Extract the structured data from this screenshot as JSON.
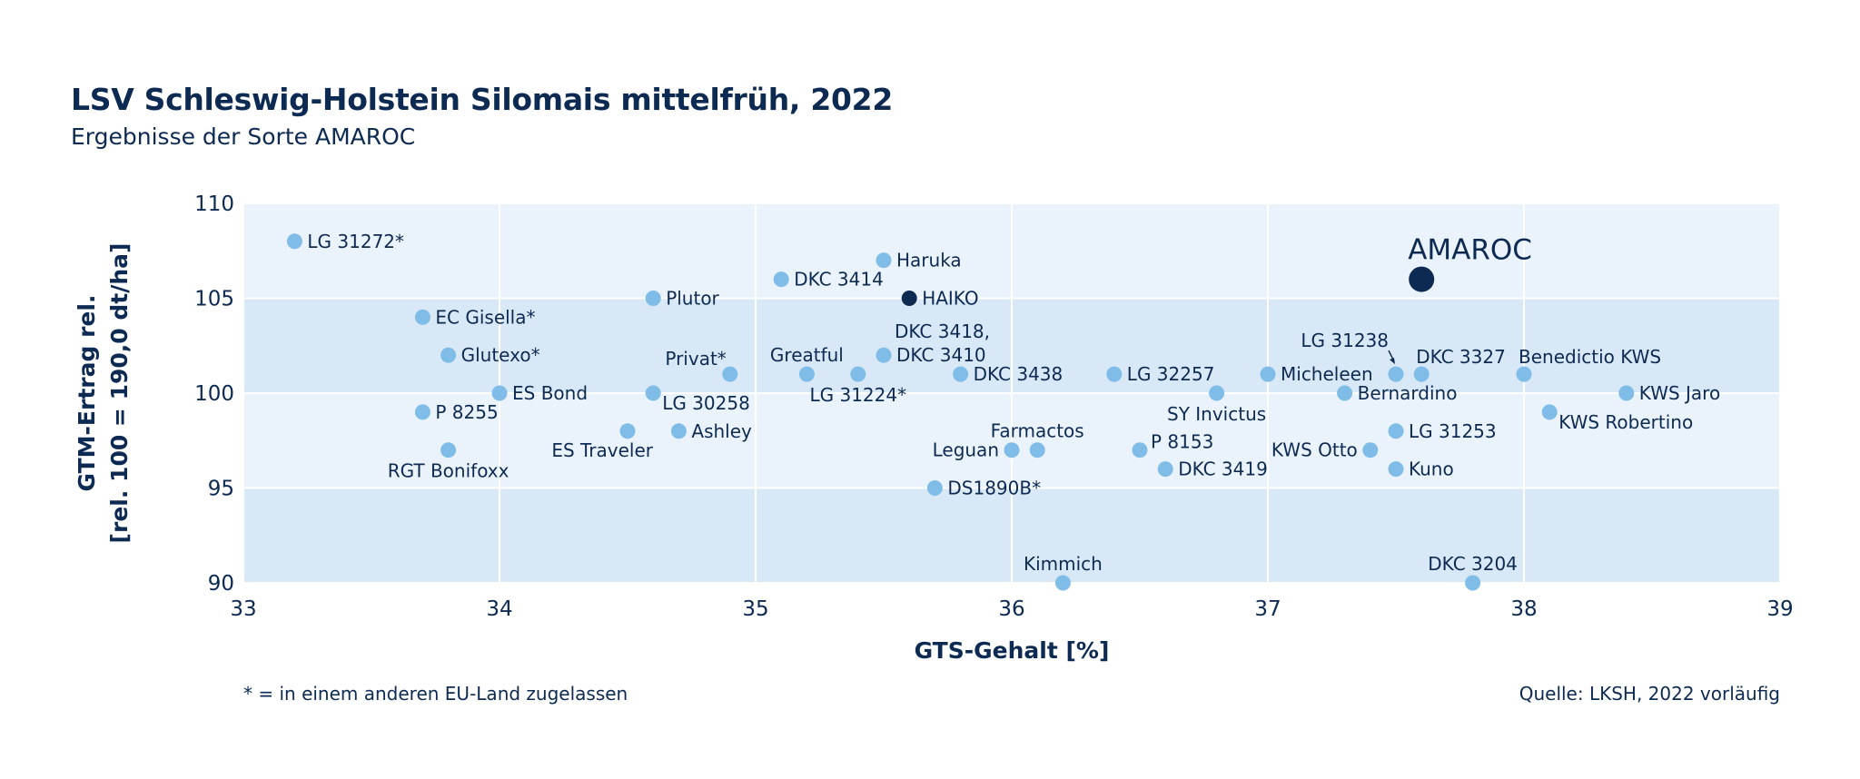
{
  "header": {
    "title": "LSV Schleswig-Holstein Silomais mittelfrüh, 2022",
    "subtitle": "Ergebnisse der Sorte AMAROC"
  },
  "footer": {
    "footnote": "* = in einem anderen EU-Land zugelassen",
    "source": "Quelle: LKSH, 2022 vorläufig"
  },
  "colors": {
    "point": "#7fbde8",
    "highlight": "#0d2a52",
    "band_light": "#eaf3fb",
    "band_dark": "#d8e8f6",
    "text": "#0d2a52"
  },
  "chart_data": {
    "type": "scatter",
    "xlabel": "GTS-Gehalt [%]",
    "ylabel_lines": [
      "GTM-Ertrag rel.",
      "[rel. 100 = 190,0 dt/ha]"
    ],
    "xlim": [
      33,
      39
    ],
    "ylim": [
      90,
      110
    ],
    "xticks": [
      33,
      34,
      35,
      36,
      37,
      38,
      39
    ],
    "yticks": [
      90,
      95,
      100,
      105,
      110
    ],
    "grid": true,
    "points": [
      {
        "label": "LG 31272*",
        "x": 33.2,
        "y": 108,
        "pos": "right"
      },
      {
        "label": "EC Gisella*",
        "x": 33.7,
        "y": 104,
        "pos": "right"
      },
      {
        "label": "Glutexo*",
        "x": 33.8,
        "y": 102,
        "pos": "right"
      },
      {
        "label": "ES Bond",
        "x": 34.0,
        "y": 100,
        "pos": "right"
      },
      {
        "label": "P 8255",
        "x": 33.7,
        "y": 99,
        "pos": "right"
      },
      {
        "label": "RGT Bonifoxx",
        "x": 33.8,
        "y": 97,
        "pos": "below"
      },
      {
        "label": "Plutor",
        "x": 34.6,
        "y": 105,
        "pos": "right"
      },
      {
        "label": "LG 30258",
        "x": 34.6,
        "y": 100,
        "pos": "right-low"
      },
      {
        "label": "ES Traveler",
        "x": 34.5,
        "y": 98,
        "pos": "below-left"
      },
      {
        "label": "Ashley",
        "x": 34.7,
        "y": 98,
        "pos": "right"
      },
      {
        "label": "Privat*",
        "x": 34.9,
        "y": 101,
        "pos": "above-left"
      },
      {
        "label": "DKC 3414",
        "x": 35.1,
        "y": 106,
        "pos": "right"
      },
      {
        "label": "Greatful",
        "x": 35.2,
        "y": 101,
        "pos": "above"
      },
      {
        "label": "LG 31224*",
        "x": 35.4,
        "y": 101,
        "pos": "below"
      },
      {
        "label": "Haruka",
        "x": 35.5,
        "y": 107,
        "pos": "right"
      },
      {
        "label": "DKC 3418,",
        "x": 35.5,
        "y": 102,
        "pos": "right-up2"
      },
      {
        "label": "DKC 3410",
        "x": 35.5,
        "y": 102,
        "pos": "right"
      },
      {
        "label": "HAIKO",
        "x": 35.6,
        "y": 105,
        "pos": "right",
        "highlight": true
      },
      {
        "label": "DKC 3438",
        "x": 35.8,
        "y": 101,
        "pos": "right"
      },
      {
        "label": "DS1890B*",
        "x": 35.7,
        "y": 95,
        "pos": "right"
      },
      {
        "label": "Leguan",
        "x": 36.0,
        "y": 97,
        "pos": "left"
      },
      {
        "label": "Farmactos",
        "x": 36.1,
        "y": 97,
        "pos": "above"
      },
      {
        "label": "Kimmich",
        "x": 36.2,
        "y": 90,
        "pos": "above"
      },
      {
        "label": "LG 32257",
        "x": 36.4,
        "y": 101,
        "pos": "right"
      },
      {
        "label": "P 8153",
        "x": 36.5,
        "y": 97,
        "pos": "right-up"
      },
      {
        "label": "DKC 3419",
        "x": 36.6,
        "y": 96,
        "pos": "right"
      },
      {
        "label": "SY Invictus",
        "x": 36.8,
        "y": 100,
        "pos": "below"
      },
      {
        "label": "Micheleen",
        "x": 37.0,
        "y": 101,
        "pos": "right"
      },
      {
        "label": "Bernardino",
        "x": 37.3,
        "y": 100,
        "pos": "right"
      },
      {
        "label": "KWS Otto",
        "x": 37.4,
        "y": 97,
        "pos": "left"
      },
      {
        "label": "LG 31238",
        "x": 37.5,
        "y": 101,
        "pos": "above-left-arrow"
      },
      {
        "label": "LG 31253",
        "x": 37.5,
        "y": 98,
        "pos": "right"
      },
      {
        "label": "Kuno",
        "x": 37.5,
        "y": 96,
        "pos": "right"
      },
      {
        "label": "DKC 3327",
        "x": 37.6,
        "y": 101,
        "pos": "above-right"
      },
      {
        "label": "AMAROC",
        "x": 37.6,
        "y": 106,
        "pos": "above-big",
        "highlight": true,
        "big": true
      },
      {
        "label": "DKC 3204",
        "x": 37.8,
        "y": 90,
        "pos": "above"
      },
      {
        "label": "Benedictio KWS",
        "x": 38.0,
        "y": 101,
        "pos": "above-right"
      },
      {
        "label": "KWS Robertino",
        "x": 38.1,
        "y": 99,
        "pos": "right-low"
      },
      {
        "label": "KWS Jaro",
        "x": 38.4,
        "y": 100,
        "pos": "right"
      }
    ]
  }
}
